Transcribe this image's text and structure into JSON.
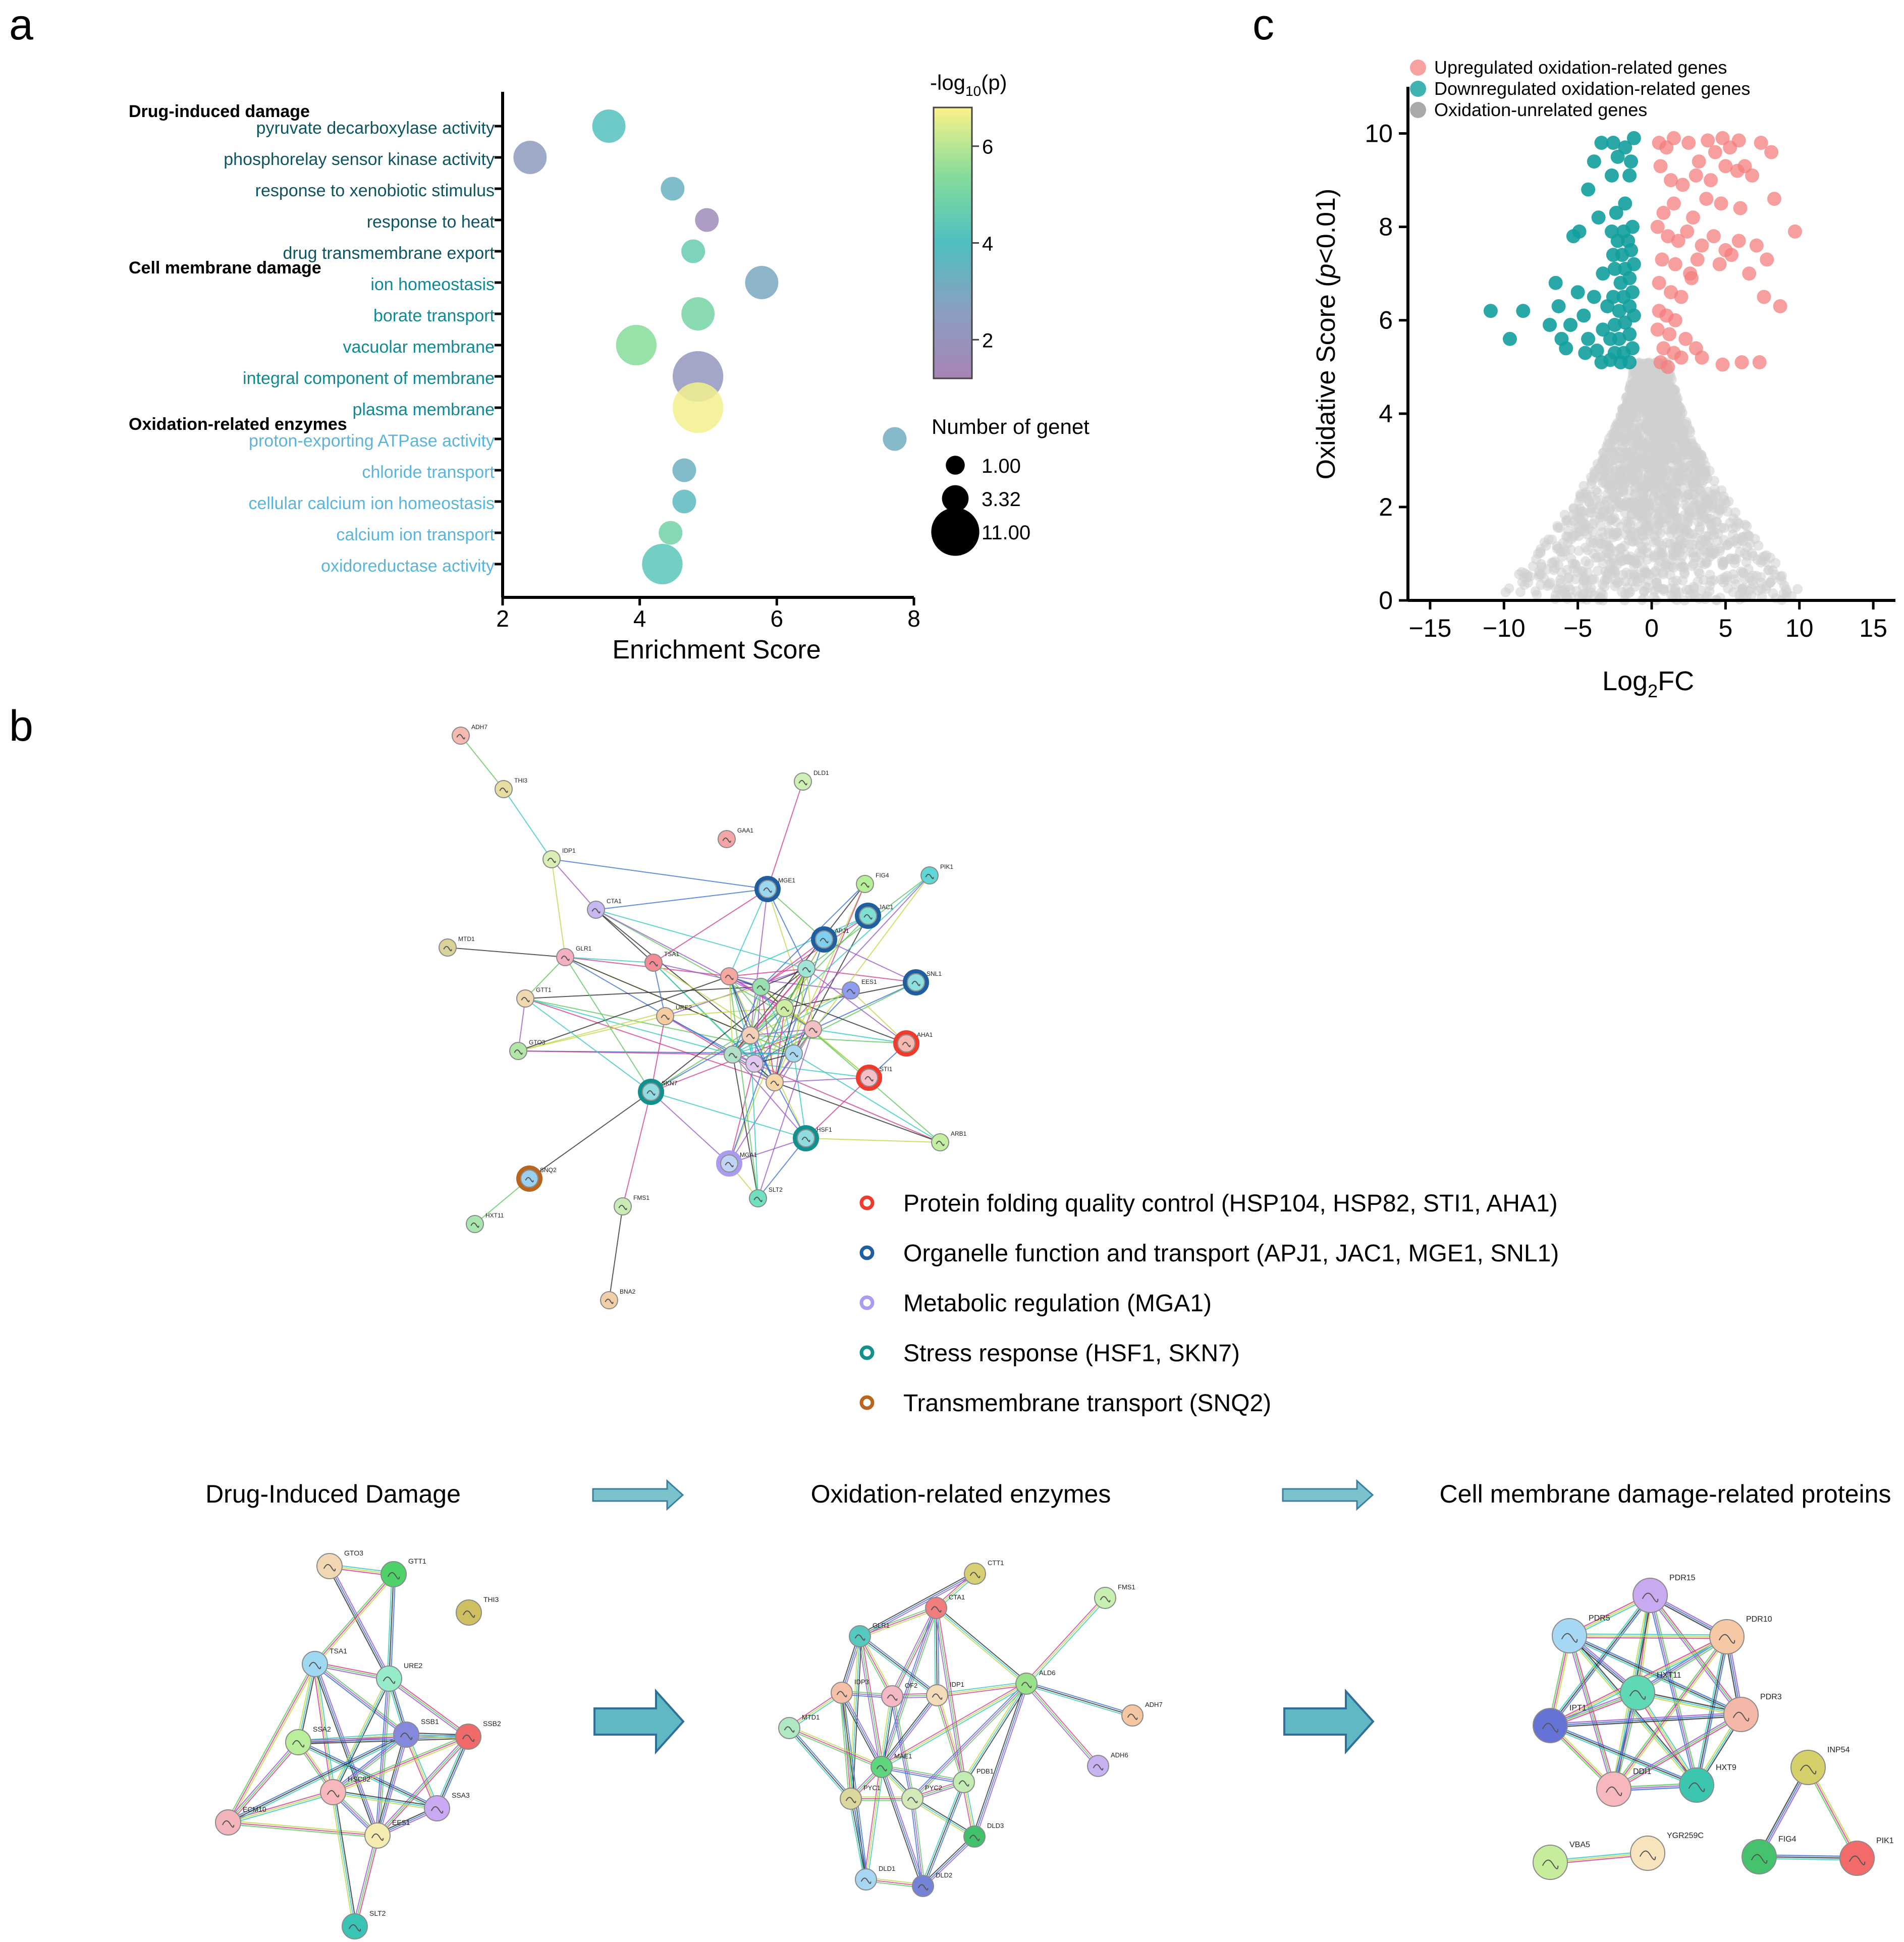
{
  "panels": {
    "a": "a",
    "b": "b",
    "c": "c"
  },
  "chart_data": [
    {
      "type": "scatter",
      "panel": "a",
      "title": "",
      "xlabel": "Enrichment Score",
      "ylabel": "",
      "xlim": [
        2,
        8
      ],
      "xticks": [
        2,
        4,
        6,
        8
      ],
      "group_labels": [
        {
          "label": "Drug-induced damage",
          "before_term": 0
        },
        {
          "label": "Cell membrane damage",
          "before_term": 5
        },
        {
          "label": "Oxidation-related enzymes",
          "before_term": 10
        }
      ],
      "terms": [
        {
          "term": "pyruvate decarboxylase activity",
          "group": "drug",
          "x": 3.55,
          "neglog10p": 4.1,
          "genes": 3.32
        },
        {
          "term": "phosphorelay sensor kinase activity",
          "group": "drug",
          "x": 2.4,
          "neglog10p": 2.4,
          "genes": 3.32
        },
        {
          "term": "response to xenobiotic stimulus",
          "group": "drug",
          "x": 4.48,
          "neglog10p": 3.4,
          "genes": 1.0
        },
        {
          "term": "response to heat",
          "group": "drug",
          "x": 4.98,
          "neglog10p": 1.6,
          "genes": 1.0
        },
        {
          "term": "drug transmembrane export",
          "group": "drug",
          "x": 4.78,
          "neglog10p": 4.6,
          "genes": 1.0
        },
        {
          "term": "ion homeostasis",
          "group": "membrane",
          "x": 5.78,
          "neglog10p": 3.0,
          "genes": 3.32
        },
        {
          "term": "borate transport",
          "group": "membrane",
          "x": 4.85,
          "neglog10p": 5.0,
          "genes": 3.32
        },
        {
          "term": "vacuolar membrane",
          "group": "membrane",
          "x": 3.95,
          "neglog10p": 5.4,
          "genes": 6.0
        },
        {
          "term": "integral component of membrane",
          "group": "membrane",
          "x": 4.85,
          "neglog10p": 2.2,
          "genes": 11.0
        },
        {
          "term": "plasma membrane",
          "group": "membrane",
          "x": 4.85,
          "neglog10p": 6.7,
          "genes": 11.0
        },
        {
          "term": "proton-exporting ATPase activity",
          "group": "oxidation",
          "x": 7.72,
          "neglog10p": 3.2,
          "genes": 1.0
        },
        {
          "term": "chloride transport",
          "group": "oxidation",
          "x": 4.65,
          "neglog10p": 3.3,
          "genes": 1.0
        },
        {
          "term": "cellular calcium ion homeostasis",
          "group": "oxidation",
          "x": 4.65,
          "neglog10p": 3.7,
          "genes": 1.0
        },
        {
          "term": "calcium ion transport",
          "group": "oxidation",
          "x": 4.45,
          "neglog10p": 4.9,
          "genes": 1.0
        },
        {
          "term": "oxidoreductase activity",
          "group": "oxidation",
          "x": 4.33,
          "neglog10p": 4.3,
          "genes": 6.0
        }
      ],
      "group_colors": {
        "drug": "#0d5560",
        "membrane": "#0f8a94",
        "oxidation": "#5bb4dc"
      },
      "colorbar": {
        "title_prefix": "-log",
        "title_sub": "10",
        "title_suffix": "(p)",
        "range": [
          1.2,
          6.8
        ],
        "ticks": [
          2,
          4,
          6
        ]
      },
      "size_legend": {
        "title": "Number of genet",
        "entries": [
          "1.00",
          "3.32",
          "11.00"
        ],
        "values": [
          1.0,
          3.32,
          11.0
        ]
      }
    },
    {
      "type": "scatter",
      "panel": "c",
      "title": "",
      "xlabel_main": "Log",
      "xlabel_sub": "2",
      "xlabel_tail": "FC",
      "ylabel_prefix": "Oxidative Score (",
      "ylabel_italic": "p",
      "ylabel_suffix": "<0.01)",
      "xlim": [
        -16.5,
        16.5
      ],
      "ylim": [
        0,
        11
      ],
      "xticks": [
        -15,
        -10,
        -5,
        0,
        5,
        10,
        15
      ],
      "yticks": [
        0,
        2,
        4,
        6,
        8,
        10
      ],
      "legend": [
        {
          "label": "Upregulated oxidation-related genes",
          "color": "#f7a1a1"
        },
        {
          "label": "Downregulated oxidation-related genes",
          "color": "#3fb2b2"
        },
        {
          "label": "Oxidation-unrelated genes",
          "color": "#a9a9a9"
        }
      ],
      "series": [
        {
          "name": "Upregulated oxidation-related genes",
          "color": "#f47e7e",
          "points": [
            [
              0.5,
              9.8
            ],
            [
              1.0,
              9.7
            ],
            [
              1.5,
              9.9
            ],
            [
              2.5,
              9.8
            ],
            [
              3.2,
              9.4
            ],
            [
              3.8,
              9.85
            ],
            [
              4.3,
              9.6
            ],
            [
              4.8,
              9.9
            ],
            [
              5.3,
              9.7
            ],
            [
              5.9,
              9.85
            ],
            [
              6.3,
              9.3
            ],
            [
              7.4,
              9.8
            ],
            [
              8.1,
              9.6
            ],
            [
              0.6,
              9.3
            ],
            [
              1.3,
              9.0
            ],
            [
              2.1,
              8.9
            ],
            [
              3.0,
              9.1
            ],
            [
              4.0,
              9.0
            ],
            [
              5.0,
              9.3
            ],
            [
              5.8,
              9.2
            ],
            [
              6.8,
              9.1
            ],
            [
              0.8,
              8.3
            ],
            [
              1.5,
              8.5
            ],
            [
              2.8,
              8.2
            ],
            [
              3.7,
              8.6
            ],
            [
              4.7,
              8.5
            ],
            [
              6.0,
              8.4
            ],
            [
              8.3,
              8.6
            ],
            [
              0.4,
              8.0
            ],
            [
              1.1,
              7.8
            ],
            [
              1.8,
              7.7
            ],
            [
              2.4,
              7.9
            ],
            [
              3.4,
              7.6
            ],
            [
              4.2,
              7.8
            ],
            [
              5.0,
              7.5
            ],
            [
              5.9,
              7.7
            ],
            [
              7.1,
              7.6
            ],
            [
              9.7,
              7.9
            ],
            [
              0.7,
              7.3
            ],
            [
              1.6,
              7.2
            ],
            [
              2.6,
              7.0
            ],
            [
              3.1,
              7.3
            ],
            [
              4.6,
              7.2
            ],
            [
              5.4,
              7.4
            ],
            [
              6.6,
              7.0
            ],
            [
              7.8,
              7.3
            ],
            [
              0.5,
              6.8
            ],
            [
              1.3,
              6.6
            ],
            [
              2.0,
              6.5
            ],
            [
              2.7,
              6.9
            ],
            [
              7.6,
              6.5
            ],
            [
              8.7,
              6.3
            ],
            [
              0.5,
              6.2
            ],
            [
              1.0,
              6.1
            ],
            [
              1.6,
              6.0
            ],
            [
              0.4,
              5.8
            ],
            [
              1.2,
              5.7
            ],
            [
              2.3,
              5.6
            ],
            [
              0.8,
              5.4
            ],
            [
              1.5,
              5.3
            ],
            [
              3.0,
              5.4
            ],
            [
              3.4,
              5.2
            ],
            [
              0.6,
              5.1
            ],
            [
              1.1,
              5.0
            ],
            [
              2.0,
              5.2
            ],
            [
              4.8,
              5.05
            ],
            [
              6.1,
              5.1
            ],
            [
              7.3,
              5.1
            ]
          ]
        },
        {
          "name": "Downregulated oxidation-related genes",
          "color": "#139e9e",
          "points": [
            [
              -1.2,
              9.9
            ],
            [
              -1.8,
              9.7
            ],
            [
              -2.6,
              9.8
            ],
            [
              -3.4,
              9.8
            ],
            [
              -1.4,
              9.4
            ],
            [
              -2.3,
              9.5
            ],
            [
              -3.9,
              9.4
            ],
            [
              -1.5,
              9.1
            ],
            [
              -2.7,
              9.1
            ],
            [
              -4.3,
              8.8
            ],
            [
              -1.8,
              8.5
            ],
            [
              -2.4,
              8.3
            ],
            [
              -3.6,
              8.2
            ],
            [
              -1.3,
              8.0
            ],
            [
              -1.9,
              7.9
            ],
            [
              -2.7,
              7.9
            ],
            [
              -4.9,
              7.9
            ],
            [
              -1.6,
              7.7
            ],
            [
              -2.3,
              7.7
            ],
            [
              -5.3,
              7.8
            ],
            [
              -1.4,
              7.5
            ],
            [
              -2.0,
              7.4
            ],
            [
              -2.6,
              7.4
            ],
            [
              -1.2,
              7.2
            ],
            [
              -1.8,
              7.1
            ],
            [
              -2.5,
              7.1
            ],
            [
              -3.3,
              7.0
            ],
            [
              -1.5,
              6.9
            ],
            [
              -2.1,
              6.8
            ],
            [
              -6.5,
              6.8
            ],
            [
              -1.3,
              6.6
            ],
            [
              -1.9,
              6.5
            ],
            [
              -2.6,
              6.5
            ],
            [
              -3.9,
              6.5
            ],
            [
              -5.0,
              6.6
            ],
            [
              -1.5,
              6.3
            ],
            [
              -2.2,
              6.2
            ],
            [
              -3.0,
              6.3
            ],
            [
              -4.6,
              6.1
            ],
            [
              -6.3,
              6.3
            ],
            [
              -8.7,
              6.2
            ],
            [
              -10.9,
              6.2
            ],
            [
              -1.2,
              6.1
            ],
            [
              -1.8,
              5.95
            ],
            [
              -2.5,
              5.9
            ],
            [
              -3.3,
              5.8
            ],
            [
              -5.5,
              5.9
            ],
            [
              -6.9,
              5.9
            ],
            [
              -1.5,
              5.7
            ],
            [
              -2.2,
              5.6
            ],
            [
              -2.8,
              5.6
            ],
            [
              -4.3,
              5.6
            ],
            [
              -6.1,
              5.6
            ],
            [
              -9.6,
              5.6
            ],
            [
              -1.3,
              5.4
            ],
            [
              -1.9,
              5.3
            ],
            [
              -2.5,
              5.3
            ],
            [
              -3.7,
              5.35
            ],
            [
              -4.5,
              5.3
            ],
            [
              -5.8,
              5.4
            ],
            [
              -1.5,
              5.1
            ],
            [
              -2.1,
              5.1
            ],
            [
              -2.8,
              5.15
            ],
            [
              -3.4,
              5.1
            ]
          ]
        }
      ],
      "unrelated_note": "dense gray background cloud"
    }
  ],
  "network_b": {
    "legend": [
      {
        "label": "Protein folding quality control (HSP104, HSP82, STI1, AHA1)",
        "color": "#ef3b2c"
      },
      {
        "label": "Organelle function and transport (APJ1, JAC1, MGE1, SNL1)",
        "color": "#1f5fa0"
      },
      {
        "label": "Metabolic regulation (MGA1)",
        "color": "#a99cf0"
      },
      {
        "label": "Stress response (HSF1, SKN7)",
        "color": "#12908e"
      },
      {
        "label": "Transmembrane transport (SNQ2)",
        "color": "#b8651f"
      }
    ],
    "nodes": [
      {
        "label": "ADH7",
        "color": "#f4b9b0"
      },
      {
        "label": "THI3",
        "color": "#e5dea0"
      },
      {
        "label": "IDP1",
        "color": "#d9efb5"
      },
      {
        "label": "DLD1",
        "color": "#cdf0b5"
      },
      {
        "label": "GAA1",
        "color": "#f4a6a6"
      },
      {
        "label": "MGE1",
        "color": "#9ad7f0"
      },
      {
        "label": "FIG4",
        "color": "#b6ee9a"
      },
      {
        "label": "PIK1",
        "color": "#60d6d6"
      },
      {
        "label": "JAC1",
        "color": "#7fe0d6"
      },
      {
        "label": "CTA1",
        "color": "#c7b8f2"
      },
      {
        "label": "APJ1",
        "color": "#7fcfee"
      },
      {
        "label": "MTD1",
        "color": "#d9d29a"
      },
      {
        "label": "GLR1",
        "color": "#f4b0c0"
      },
      {
        "label": "TSA1",
        "color": "#f28b96"
      },
      {
        "label": "SNL1",
        "color": "#8ee0e0"
      },
      {
        "label": "EES1",
        "color": "#8f9df0"
      },
      {
        "label": "GTT1",
        "color": "#efd9b0"
      },
      {
        "label": "URE2",
        "color": "#f5cba0"
      },
      {
        "label": "AHA1",
        "color": "#f7b8b0"
      },
      {
        "label": "GTO3",
        "color": "#b2e6a8"
      },
      {
        "label": "STI1",
        "color": "#f7c0c8"
      },
      {
        "label": "SKN7",
        "color": "#90dce0"
      },
      {
        "label": "HSF1",
        "color": "#90dce0"
      },
      {
        "label": "ARB1",
        "color": "#c2f0a0"
      },
      {
        "label": "MGA1",
        "color": "#c0d4f5"
      },
      {
        "label": "SNQ2",
        "color": "#9ad0f0"
      },
      {
        "label": "SLT2",
        "color": "#6fe0c0"
      },
      {
        "label": "FMS1",
        "color": "#c9ecb6"
      },
      {
        "label": "HXT11",
        "color": "#a8e6b0"
      },
      {
        "label": "BNA2",
        "color": "#f0cfa6"
      }
    ],
    "sub_titles": [
      "Drug-Induced Damage",
      "Oxidation-related enzymes",
      "Cell membrane damage-related proteins"
    ],
    "subnet1": [
      {
        "label": "GTO3",
        "color": "#f2d8b2"
      },
      {
        "label": "GTT1",
        "color": "#4fd169"
      },
      {
        "label": "THI3",
        "color": "#cec061"
      },
      {
        "label": "TSA1",
        "color": "#9fd8f2"
      },
      {
        "label": "URE2",
        "color": "#96ecc9"
      },
      {
        "label": "SSA2",
        "color": "#b9ef9a"
      },
      {
        "label": "SSB1",
        "color": "#8589de"
      },
      {
        "label": "SSB2",
        "color": "#f06a6a"
      },
      {
        "label": "HSC82",
        "color": "#f6b8b8"
      },
      {
        "label": "SSA3",
        "color": "#c9a9f2"
      },
      {
        "label": "EES1",
        "color": "#f5ecb2"
      },
      {
        "label": "ECM10",
        "color": "#f3b4bc"
      },
      {
        "label": "SLT2",
        "color": "#39c4b6"
      }
    ],
    "subnet2": [
      {
        "label": "CTT1",
        "color": "#d6cf74"
      },
      {
        "label": "CTA1",
        "color": "#f27d7d"
      },
      {
        "label": "FMS1",
        "color": "#c7efb0"
      },
      {
        "label": "GLR1",
        "color": "#55c9c0"
      },
      {
        "label": "IDP3",
        "color": "#f4c0a8"
      },
      {
        "label": "OF2",
        "color": "#f4b8c4"
      },
      {
        "label": "IDP1",
        "color": "#f5dcb8"
      },
      {
        "label": "ALD6",
        "color": "#9ae28a"
      },
      {
        "label": "ADH7",
        "color": "#f4c7a2"
      },
      {
        "label": "MTD1",
        "color": "#aee9c2"
      },
      {
        "label": "MAE1",
        "color": "#5ed67e"
      },
      {
        "label": "ADH6",
        "color": "#c8b2f2"
      },
      {
        "label": "PDB1",
        "color": "#c2ecb2"
      },
      {
        "label": "PYC1",
        "color": "#dcd79a"
      },
      {
        "label": "PYC2",
        "color": "#d2e9b8"
      },
      {
        "label": "DLD3",
        "color": "#41c26a"
      },
      {
        "label": "DLD1",
        "color": "#a6d6f2"
      },
      {
        "label": "DLD2",
        "color": "#7483d6"
      }
    ],
    "subnet3": [
      {
        "label": "PDR15",
        "color": "#c8aaf0"
      },
      {
        "label": "PDR5",
        "color": "#a6d8f5"
      },
      {
        "label": "PDR10",
        "color": "#f6c9a6"
      },
      {
        "label": "HXT11",
        "color": "#5fd8b6"
      },
      {
        "label": "IPT1",
        "color": "#6573d6"
      },
      {
        "label": "PDR3",
        "color": "#f4b8a8"
      },
      {
        "label": "DDI1",
        "color": "#f6b8bc"
      },
      {
        "label": "HXT9",
        "color": "#3cc6b0"
      },
      {
        "label": "INP54",
        "color": "#d5d06a"
      },
      {
        "label": "YGR259C",
        "color": "#f7e3bc"
      },
      {
        "label": "VBA5",
        "color": "#c6ec9c"
      },
      {
        "label": "FIG4",
        "color": "#44c36c"
      },
      {
        "label": "PIK1",
        "color": "#f26a6a"
      }
    ]
  }
}
